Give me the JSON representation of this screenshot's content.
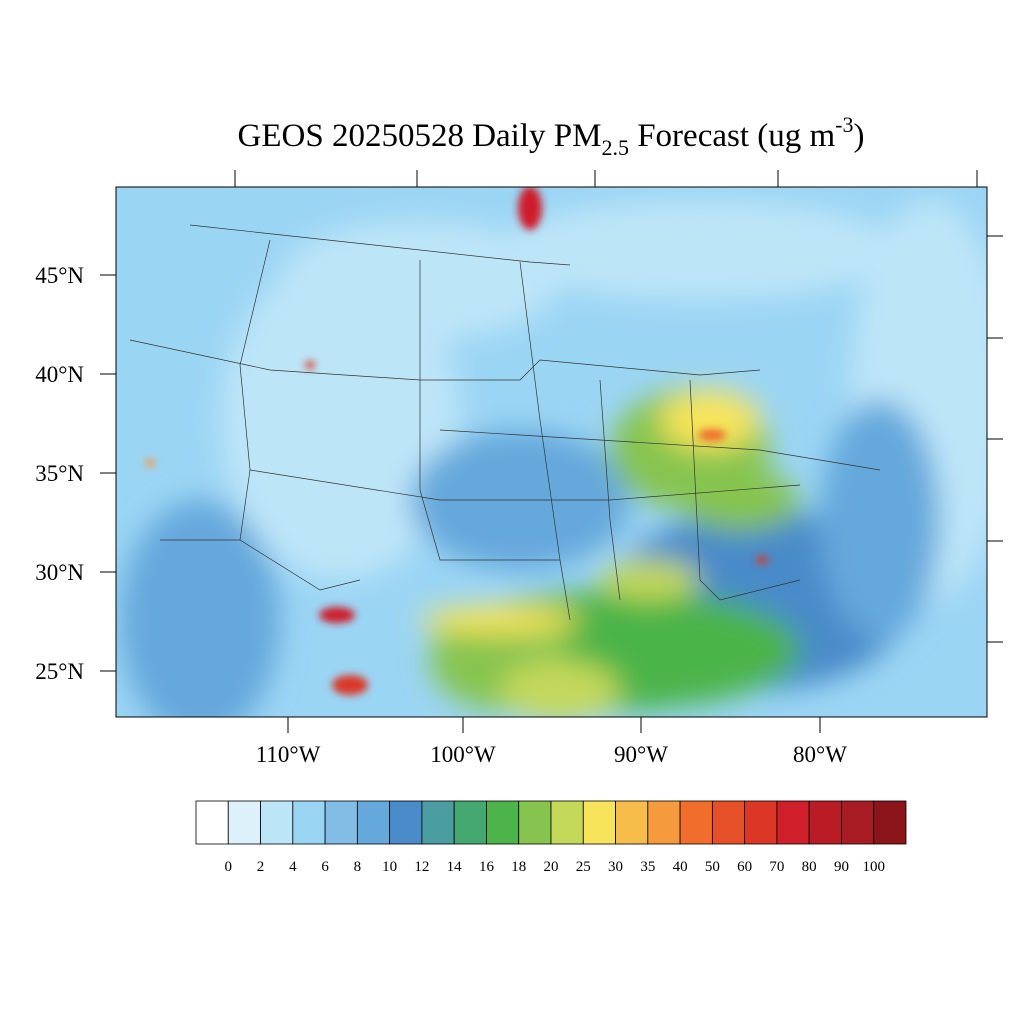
{
  "title": {
    "main": "GEOS 20250528 Daily PM",
    "subscript": "2.5",
    "middle": " Forecast (ug m",
    "superscript": "-3",
    "end": ")"
  },
  "map": {
    "lat_labels": [
      "45°N",
      "40°N",
      "35°N",
      "30°N",
      "25°N"
    ],
    "lon_labels": [
      "110°W",
      "100°W",
      "90°W",
      "80°W"
    ]
  },
  "colorbar": {
    "levels": [
      0,
      2,
      4,
      6,
      8,
      10,
      12,
      14,
      16,
      18,
      20,
      25,
      30,
      35,
      40,
      50,
      60,
      70,
      80,
      90,
      100
    ],
    "colors": [
      "#ffffff",
      "#ddf1fb",
      "#bde5f8",
      "#9bd5f4",
      "#82bde6",
      "#65a8dc",
      "#4a8bc9",
      "#4a9da0",
      "#46a871",
      "#4cb44a",
      "#86c44f",
      "#c4d85a",
      "#f8e45a",
      "#f7bd4a",
      "#f59a3d",
      "#f06d2c",
      "#e65028",
      "#dc3726",
      "#cf1f2a",
      "#b91c24",
      "#a81b22",
      "#8b1519"
    ]
  }
}
